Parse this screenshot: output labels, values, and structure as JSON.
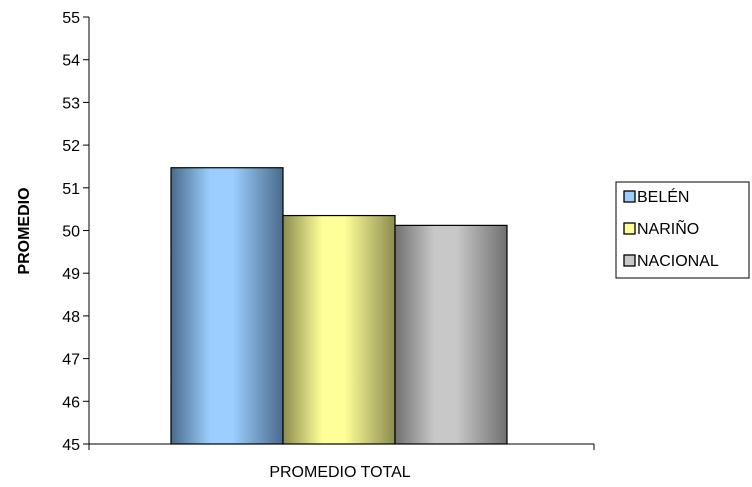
{
  "chart_data": {
    "type": "bar",
    "title": "",
    "xlabel": "",
    "ylabel": "PROMEDIO",
    "categories": [
      "PROMEDIO TOTAL"
    ],
    "ylim": [
      45,
      55
    ],
    "yticks": [
      45,
      46,
      47,
      48,
      49,
      50,
      51,
      52,
      53,
      54,
      55
    ],
    "grid": false,
    "legend_position": "right",
    "series": [
      {
        "name": "BELÉN",
        "values": [
          51.47
        ],
        "color": "#9ccfff",
        "shade": "#4a6a8c"
      },
      {
        "name": "NARIÑO",
        "values": [
          50.35
        ],
        "color": "#ffff99",
        "shade": "#8c8c4f"
      },
      {
        "name": "NACIONAL",
        "values": [
          50.12
        ],
        "color": "#c8c8c8",
        "shade": "#707070"
      }
    ]
  }
}
